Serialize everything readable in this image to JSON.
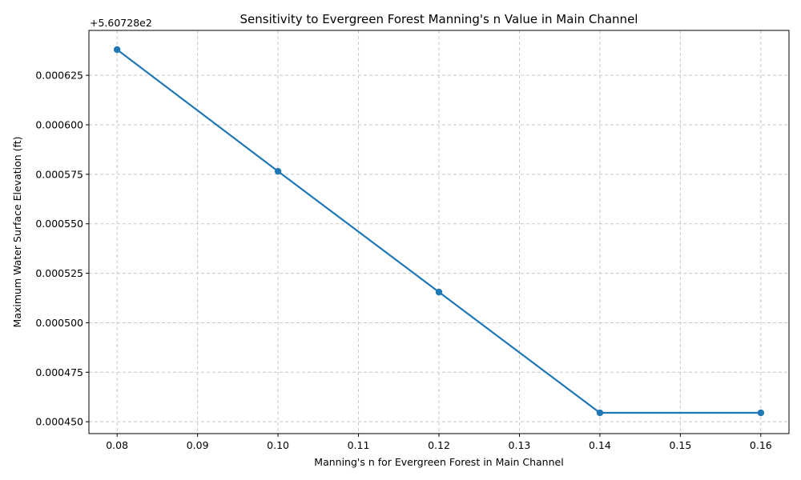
{
  "chart_data": {
    "type": "line",
    "title": "Sensitivity to Evergreen Forest Manning's n Value in Main Channel",
    "xlabel": "Manning's n for Evergreen Forest in Main Channel",
    "ylabel": "Maximum Water Surface Elevation (ft)",
    "y_offset_label": "+5.60728e2",
    "x": [
      0.08,
      0.1,
      0.12,
      0.14,
      0.16
    ],
    "y": [
      0.000638,
      0.0005765,
      0.0005155,
      0.0004545,
      0.0004545
    ],
    "xlim": [
      0.0765,
      0.1635
    ],
    "ylim": [
      0.000444,
      0.0006477
    ],
    "x_ticks": [
      0.08,
      0.09,
      0.1,
      0.11,
      0.12,
      0.13,
      0.14,
      0.15,
      0.16
    ],
    "x_tick_labels": [
      "0.08",
      "0.09",
      "0.10",
      "0.11",
      "0.12",
      "0.13",
      "0.14",
      "0.15",
      "0.16"
    ],
    "y_ticks": [
      0.00045,
      0.000475,
      0.0005,
      0.000525,
      0.00055,
      0.000575,
      0.0006,
      0.000625
    ],
    "y_tick_labels": [
      "0.000450",
      "0.000475",
      "0.000500",
      "0.000525",
      "0.000550",
      "0.000575",
      "0.000600",
      "0.000625"
    ],
    "grid": true,
    "line_color": "#1f77b4",
    "grid_color": "#c8c8c8"
  }
}
